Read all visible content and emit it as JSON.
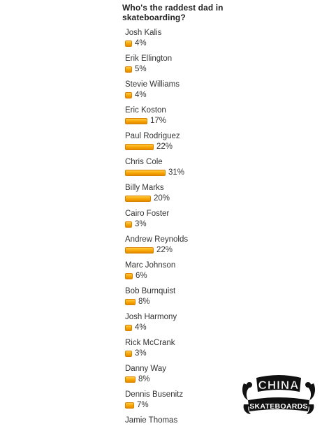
{
  "poll": {
    "question": "Who's the raddest dad in skateboarding?",
    "options": [
      {
        "label": "Josh Kalis",
        "percent": 4,
        "percent_text": "4%"
      },
      {
        "label": "Erik Ellington",
        "percent": 5,
        "percent_text": "5%"
      },
      {
        "label": "Stevie Williams",
        "percent": 4,
        "percent_text": "4%"
      },
      {
        "label": "Eric Koston",
        "percent": 17,
        "percent_text": "17%"
      },
      {
        "label": "Paul Rodriguez",
        "percent": 22,
        "percent_text": "22%"
      },
      {
        "label": "Chris Cole",
        "percent": 31,
        "percent_text": "31%"
      },
      {
        "label": "Billy Marks",
        "percent": 20,
        "percent_text": "20%"
      },
      {
        "label": "Cairo Foster",
        "percent": 3,
        "percent_text": "3%"
      },
      {
        "label": "Andrew Reynolds",
        "percent": 22,
        "percent_text": "22%"
      },
      {
        "label": "Marc Johnson",
        "percent": 6,
        "percent_text": "6%"
      },
      {
        "label": "Bob Burnquist",
        "percent": 8,
        "percent_text": "8%"
      },
      {
        "label": "Josh Harmony",
        "percent": 4,
        "percent_text": "4%"
      },
      {
        "label": "Rick McCrank",
        "percent": 3,
        "percent_text": "3%"
      },
      {
        "label": "Danny Way",
        "percent": 8,
        "percent_text": "8%"
      },
      {
        "label": "Dennis Busenitz",
        "percent": 7,
        "percent_text": "7%"
      },
      {
        "label": "Jamie Thomas",
        "percent": null,
        "percent_text": ""
      }
    ]
  },
  "logo": {
    "brand_top": "CHINA",
    "brand_bottom": "SKATEBOARDS",
    "icon": "dragon-logo-icon"
  },
  "colors": {
    "bar": "#f7a000",
    "bar_border": "#d98200",
    "text": "#333333",
    "background": "#ffffff"
  }
}
